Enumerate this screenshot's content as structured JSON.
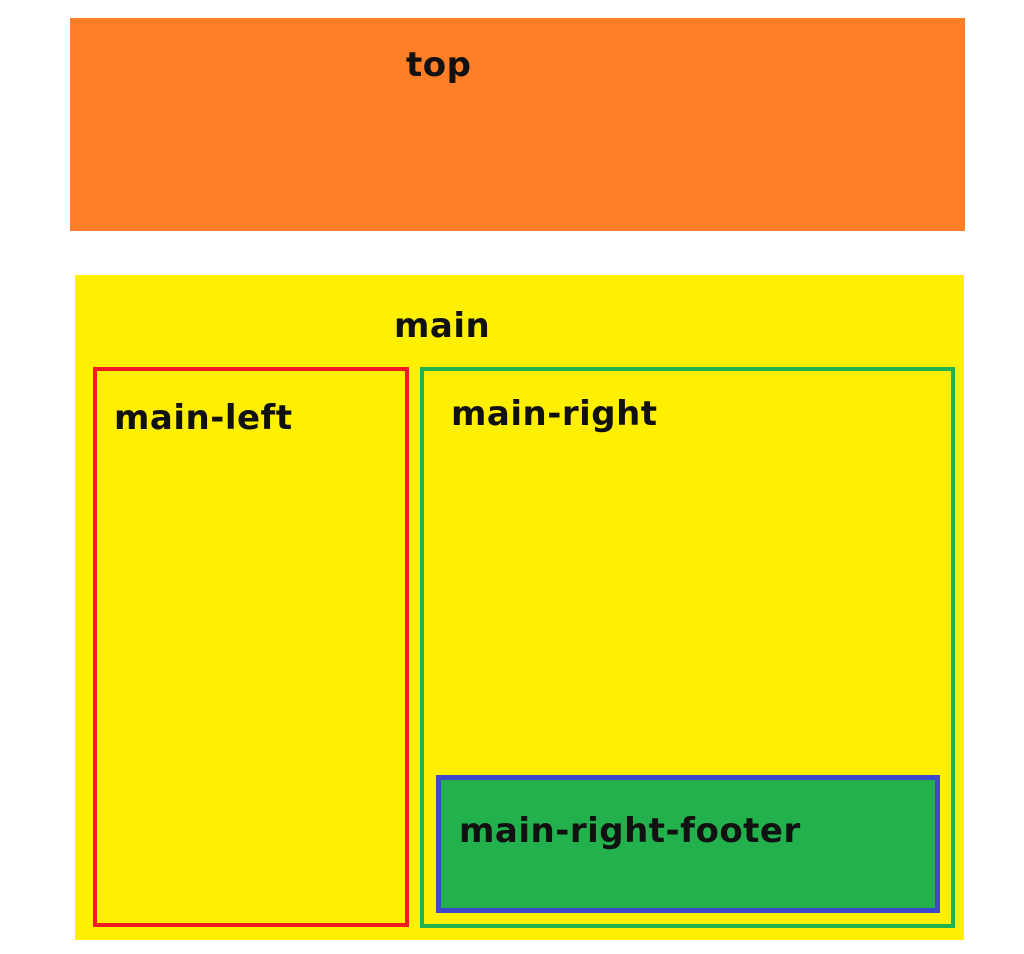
{
  "top": {
    "label": "top",
    "fill": "#fe7f27"
  },
  "main": {
    "label": "main",
    "fill": "#fef000"
  },
  "main_left": {
    "label": "main-left",
    "fill": "#fef000",
    "border": "#ee1d24"
  },
  "main_right": {
    "label": "main-right",
    "fill": "#fef000",
    "border": "#22b14c"
  },
  "main_right_footer": {
    "label": "main-right-footer",
    "fill": "#22b14c",
    "border": "#3f48cc"
  }
}
